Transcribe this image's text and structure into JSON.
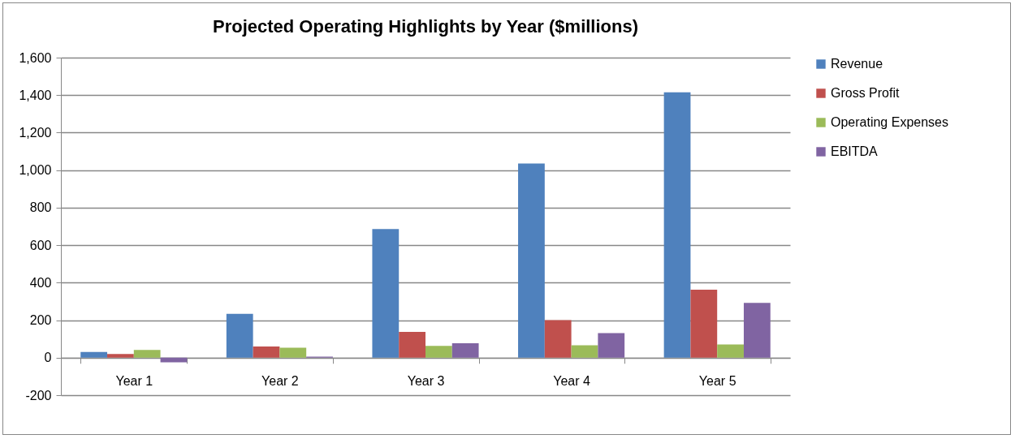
{
  "chart_data": {
    "type": "bar",
    "title": "Projected Operating Highlights by Year ($millions)",
    "categories": [
      "Year 1",
      "Year 2",
      "Year 3",
      "Year 4",
      "Year 5"
    ],
    "series": [
      {
        "name": "Revenue",
        "color": "#4f81bd",
        "values": [
          30,
          234,
          686,
          1035,
          1415
        ]
      },
      {
        "name": "Gross Profit",
        "color": "#c0504d",
        "values": [
          20,
          60,
          138,
          200,
          362
        ]
      },
      {
        "name": "Operating Expenses",
        "color": "#9bbb59",
        "values": [
          41,
          53,
          63,
          66,
          70
        ]
      },
      {
        "name": "EBITDA",
        "color": "#8064a2",
        "values": [
          -25,
          5,
          77,
          131,
          292
        ]
      }
    ],
    "ylim": [
      -200,
      1600
    ],
    "yticks": [
      -200,
      0,
      200,
      400,
      600,
      800,
      {
        "value": 1000,
        "label": "1,000"
      },
      {
        "value": 1200,
        "label": "1,200"
      },
      {
        "value": 1400,
        "label": "1,400"
      },
      {
        "value": 1600,
        "label": "1,600"
      }
    ],
    "grid": "y",
    "legend": "right"
  }
}
